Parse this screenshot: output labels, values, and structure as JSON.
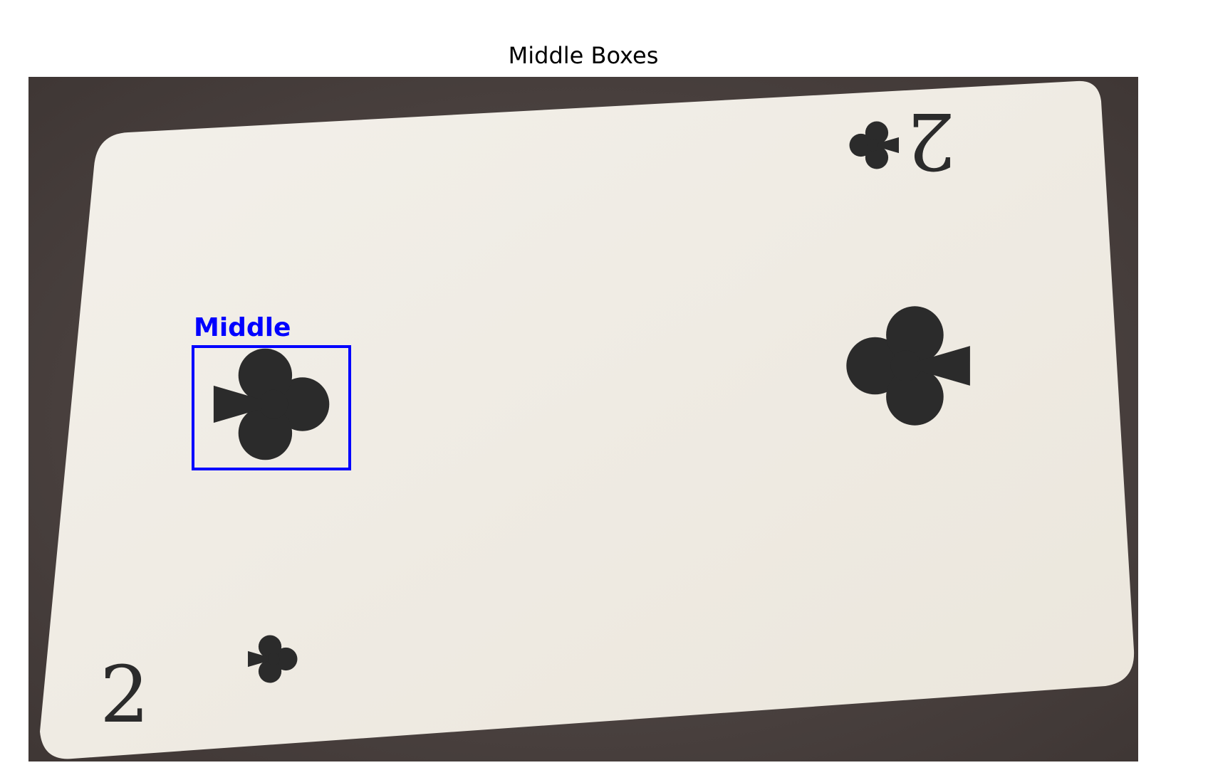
{
  "figure": {
    "title": "Middle Boxes"
  },
  "photo": {
    "subject": "two-of-clubs-playing-card",
    "card_rank": "2",
    "card_suit_icon": "club-icon",
    "colors": {
      "table": "#4a4140",
      "card": "#eeeae2",
      "ink": "#2b2b2b",
      "box": "#0000ff"
    }
  },
  "detections": [
    {
      "label": "Middle",
      "color": "#0000ff"
    }
  ]
}
